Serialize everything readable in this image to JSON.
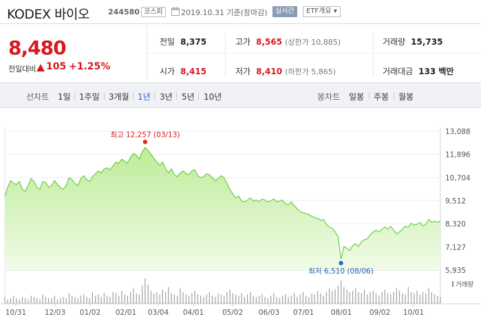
{
  "header": {
    "name": "KODEX 바이오",
    "code": "244580",
    "market_badge": "코스피",
    "date": "2019.10.31 기준(장마감)",
    "realtime_badge": "실시간",
    "etf_badge": "ETF개요 ▾"
  },
  "price": {
    "current": "8,480",
    "prev_label": "전일대비",
    "change": "105",
    "rate": "+1.25%"
  },
  "stats": {
    "prev_close": {
      "label": "전일",
      "value": "8,375"
    },
    "high": {
      "label": "고가",
      "value": "8,565",
      "sub": "(상한가 10,885)"
    },
    "volume": {
      "label": "거래량",
      "value": "15,735"
    },
    "open": {
      "label": "시가",
      "value": "8,415"
    },
    "low": {
      "label": "저가",
      "value": "8,410",
      "sub": "(하한가 5,865)"
    },
    "amount": {
      "label": "거래대금",
      "value": "133 백만"
    }
  },
  "periods": {
    "line_label": "선차트",
    "items": [
      "1일",
      "1주일",
      "3개월",
      "1년",
      "3년",
      "5년",
      "10년"
    ],
    "selected": "1년",
    "candle_label": "봉차트",
    "candle_items": [
      "일봉",
      "주봉",
      "월봉"
    ]
  },
  "chart_data": {
    "type": "area",
    "y_ticks": [
      "13,088",
      "11,896",
      "10,704",
      "9,512",
      "8,320",
      "7,127",
      "5,935"
    ],
    "ylim": [
      5935,
      13088
    ],
    "x_ticks": [
      "10/31",
      "12/03",
      "01/02",
      "02/01",
      "03/04",
      "04/01",
      "05/02",
      "06/03",
      "07/01",
      "08/01",
      "09/02",
      "10/01"
    ],
    "high_label": "최고 12,257 (03/13)",
    "low_label": "최저 6,510 (08/06)",
    "high_value": 12257,
    "low_value": 6510,
    "volume_label": "거래량",
    "line_color": "#6ecb45",
    "fill_color": "#c9f0a8",
    "values": [
      9750,
      10200,
      10550,
      10400,
      10350,
      10500,
      10100,
      10000,
      10300,
      10650,
      10500,
      10200,
      10100,
      10500,
      10450,
      10200,
      10300,
      10550,
      10350,
      10200,
      10100,
      10300,
      10700,
      10600,
      10400,
      10300,
      10650,
      10800,
      10600,
      10500,
      10750,
      10900,
      11050,
      10950,
      11150,
      11200,
      11100,
      11300,
      11500,
      11450,
      11650,
      11550,
      11450,
      11750,
      11950,
      11850,
      11650,
      12050,
      12257,
      12100,
      11900,
      11700,
      11500,
      11350,
      11500,
      11150,
      10950,
      11150,
      10850,
      10750,
      10950,
      11050,
      10900,
      10850,
      11050,
      11100,
      10800,
      10700,
      10750,
      10900,
      10850,
      10700,
      10550,
      10650,
      10800,
      10700,
      10400,
      10100,
      9850,
      9650,
      9750,
      9500,
      9450,
      9550,
      9650,
      9500,
      9550,
      9450,
      9600,
      9550,
      9450,
      9500,
      9600,
      9450,
      9500,
      9550,
      9350,
      9300,
      9450,
      9250,
      9100,
      8950,
      8900,
      8850,
      8800,
      8700,
      8650,
      8600,
      8500,
      8550,
      8300,
      8150,
      8100,
      7900,
      7650,
      6510,
      7150,
      7050,
      6950,
      7200,
      7300,
      7150,
      7400,
      7500,
      7550,
      7750,
      7900,
      8000,
      7900,
      8050,
      8150,
      8050,
      8200,
      8000,
      7800,
      7900,
      8050,
      8200,
      8150,
      8350,
      8250,
      8300,
      8400,
      8200,
      8300,
      8550,
      8400,
      8450,
      8400,
      8480
    ],
    "volumes": [
      5,
      3,
      4,
      6,
      4,
      3,
      5,
      4,
      3,
      6,
      5,
      4,
      3,
      7,
      5,
      4,
      4,
      6,
      3,
      4,
      5,
      4,
      8,
      6,
      5,
      4,
      6,
      7,
      5,
      4,
      9,
      6,
      7,
      5,
      8,
      6,
      5,
      9,
      8,
      6,
      10,
      7,
      6,
      9,
      12,
      8,
      7,
      14,
      20,
      15,
      10,
      8,
      9,
      7,
      11,
      9,
      13,
      8,
      7,
      6,
      12,
      9,
      7,
      6,
      8,
      10,
      7,
      6,
      5,
      7,
      9,
      6,
      5,
      8,
      7,
      6,
      9,
      11,
      8,
      7,
      6,
      8,
      5,
      7,
      9,
      6,
      5,
      6,
      7,
      5,
      4,
      6,
      8,
      5,
      4,
      6,
      7,
      5,
      6,
      8,
      5,
      7,
      9,
      6,
      5,
      8,
      7,
      10,
      8,
      6,
      9,
      12,
      10,
      11,
      14,
      18,
      13,
      11,
      9,
      10,
      12,
      9,
      8,
      11,
      7,
      9,
      10,
      8,
      6,
      9,
      11,
      8,
      7,
      9,
      12,
      10,
      8,
      7,
      13,
      9,
      8,
      10,
      7,
      9,
      8,
      12,
      9,
      7,
      6,
      5
    ],
    "volume_max": 20
  }
}
